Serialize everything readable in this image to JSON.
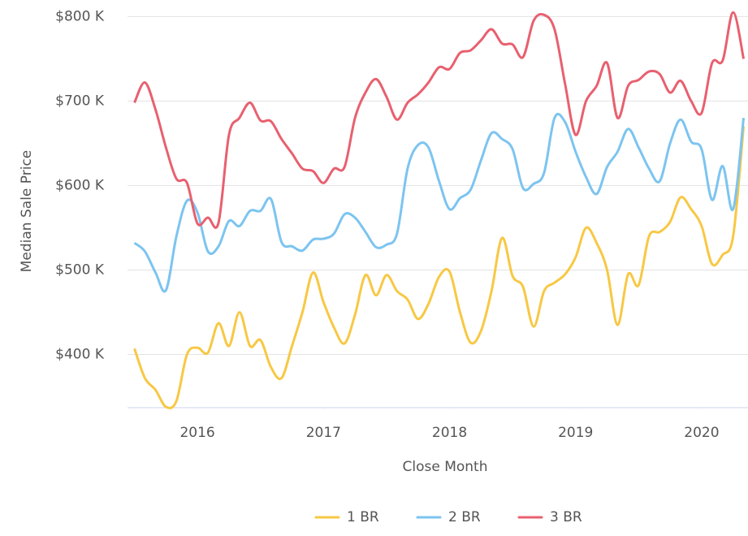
{
  "chart_data": {
    "type": "line",
    "x_label": "Close Month",
    "y_label": "Median Sale Price",
    "x": [
      2015.5,
      2015.583,
      2015.667,
      2015.75,
      2015.833,
      2015.917,
      2016,
      2016.083,
      2016.167,
      2016.25,
      2016.333,
      2016.417,
      2016.5,
      2016.583,
      2016.667,
      2016.75,
      2016.833,
      2016.917,
      2017,
      2017.083,
      2017.167,
      2017.25,
      2017.333,
      2017.417,
      2017.5,
      2017.583,
      2017.667,
      2017.75,
      2017.833,
      2017.917,
      2018,
      2018.083,
      2018.167,
      2018.25,
      2018.333,
      2018.417,
      2018.5,
      2018.583,
      2018.667,
      2018.75,
      2018.833,
      2018.917,
      2019,
      2019.083,
      2019.167,
      2019.25,
      2019.333,
      2019.417,
      2019.5,
      2019.583,
      2019.667,
      2019.75,
      2019.833,
      2019.917,
      2020,
      2020.083,
      2020.167,
      2020.25,
      2020.333
    ],
    "series": [
      {
        "name": "1 BR",
        "color": "#f7c844",
        "values": [
          407,
          372,
          358,
          338,
          345,
          400,
          408,
          402,
          437,
          410,
          450,
          410,
          417,
          385,
          372,
          410,
          450,
          497,
          462,
          432,
          413,
          447,
          494,
          470,
          494,
          475,
          465,
          442,
          460,
          492,
          498,
          450,
          414,
          428,
          475,
          538,
          493,
          480,
          433,
          475,
          485,
          495,
          515,
          550,
          532,
          500,
          435,
          495,
          482,
          540,
          545,
          557,
          586,
          572,
          552,
          507,
          518,
          540,
          670
        ]
      },
      {
        "name": "2 BR",
        "color": "#7cc4f0",
        "values": [
          532,
          522,
          497,
          476,
          540,
          582,
          568,
          522,
          528,
          558,
          552,
          570,
          570,
          584,
          533,
          528,
          523,
          536,
          537,
          543,
          566,
          562,
          545,
          527,
          530,
          543,
          620,
          648,
          645,
          605,
          572,
          585,
          595,
          630,
          662,
          655,
          643,
          597,
          602,
          615,
          680,
          675,
          640,
          610,
          590,
          622,
          640,
          667,
          645,
          620,
          605,
          650,
          678,
          652,
          643,
          583,
          623,
          572,
          680
        ]
      },
      {
        "name": "3 BR",
        "color": "#e8606f",
        "values": [
          698,
          722,
          690,
          645,
          608,
          603,
          555,
          562,
          556,
          660,
          680,
          698,
          677,
          676,
          655,
          638,
          620,
          617,
          603,
          620,
          622,
          680,
          710,
          726,
          705,
          678,
          698,
          708,
          722,
          740,
          738,
          757,
          760,
          772,
          785,
          768,
          767,
          752,
          795,
          802,
          785,
          720,
          660,
          700,
          718,
          745,
          680,
          718,
          725,
          735,
          732,
          710,
          724,
          700,
          686,
          745,
          748,
          805,
          750
        ]
      }
    ],
    "xlim": [
      2015.445,
      2020.368
    ],
    "xticks": [
      2016,
      2017,
      2018,
      2019,
      2020
    ],
    "ylim": [
      337,
      810
    ],
    "yticks": [
      {
        "value": 400,
        "label": "$400 K"
      },
      {
        "value": 500,
        "label": "$500 K"
      },
      {
        "value": 600,
        "label": "$600 K"
      },
      {
        "value": 700,
        "label": "$700 K"
      },
      {
        "value": 800,
        "label": "$800 K"
      }
    ],
    "grid": true,
    "legend": "bottom"
  }
}
